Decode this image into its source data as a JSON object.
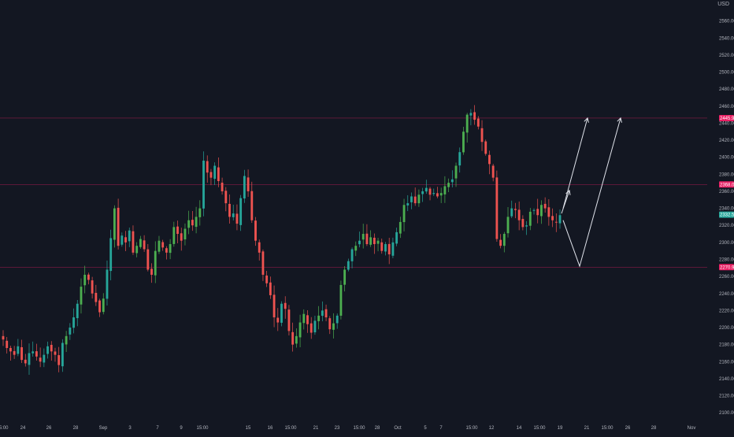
{
  "colors": {
    "background": "#131722",
    "up": "#26a69a",
    "up_bright": "#4caf50",
    "down": "#ef5350",
    "axis_text": "#b2b5be",
    "hline": "#e91e63",
    "last_price_tag": "#26a69a",
    "arrow": "#e0e3eb"
  },
  "header": {
    "currency": "USD"
  },
  "chart_data": {
    "type": "candlestick",
    "y_axis": {
      "ylim": [
        2090,
        2580
      ],
      "ticks": [
        "2560.00",
        "2540.00",
        "2520.00",
        "2500.00",
        "2480.00",
        "2460.00",
        "2440.00",
        "2420.00",
        "2400.00",
        "2380.00",
        "2360.00",
        "2340.00",
        "2320.00",
        "2300.00",
        "2280.00",
        "2260.00",
        "2240.00",
        "2220.00",
        "2200.00",
        "2180.00",
        "2160.00",
        "2140.00",
        "2120.00",
        "2100.00"
      ]
    },
    "x_axis": {
      "ticks": [
        "15:00",
        "24",
        "26",
        "28",
        "Sep",
        "3",
        "7",
        "9",
        "15:00",
        "15",
        "16",
        "15:00",
        "21",
        "23",
        "15:00",
        "28",
        "Oct",
        "5",
        "7",
        "15:00",
        "12",
        "14",
        "15:00",
        "19",
        "21",
        "15:00",
        "26",
        "28",
        "Nov"
      ]
    },
    "horizontal_levels": [
      {
        "value": 2445.96,
        "label": "2445.96"
      },
      {
        "value": 2368.0,
        "label": "2368.00"
      },
      {
        "value": 2270.96,
        "label": "2270.96"
      }
    ],
    "last_price": {
      "value": 2332.52,
      "label": "2332.52"
    },
    "close_path": [
      2186,
      2176,
      2172,
      2168,
      2178,
      2162,
      2158,
      2170,
      2172,
      2166,
      2160,
      2168,
      2178,
      2172,
      2168,
      2156,
      2182,
      2190,
      2200,
      2212,
      2228,
      2248,
      2262,
      2256,
      2240,
      2230,
      2218,
      2234,
      2268,
      2305,
      2340,
      2296,
      2308,
      2300,
      2314,
      2288,
      2296,
      2304,
      2292,
      2268,
      2262,
      2290,
      2302,
      2294,
      2288,
      2298,
      2318,
      2310,
      2302,
      2316,
      2326,
      2320,
      2330,
      2340,
      2396,
      2382,
      2376,
      2390,
      2372,
      2360,
      2346,
      2330,
      2334,
      2322,
      2352,
      2378,
      2360,
      2326,
      2302,
      2288,
      2262,
      2252,
      2238,
      2212,
      2206,
      2228,
      2222,
      2196,
      2180,
      2190,
      2206,
      2216,
      2204,
      2194,
      2208,
      2214,
      2220,
      2212,
      2198,
      2205,
      2214,
      2250,
      2268,
      2278,
      2292,
      2296,
      2302,
      2310,
      2298,
      2306,
      2298,
      2302,
      2290,
      2298,
      2286,
      2300,
      2312,
      2324,
      2344,
      2346,
      2354,
      2346,
      2356,
      2360,
      2364,
      2356,
      2358,
      2354,
      2358,
      2366,
      2370,
      2374,
      2390,
      2406,
      2430,
      2450,
      2452,
      2444,
      2436,
      2418,
      2404,
      2392,
      2376,
      2304,
      2296,
      2310,
      2330,
      2340,
      2338,
      2326,
      2318,
      2320,
      2336,
      2338,
      2332,
      2344,
      2340,
      2330,
      2326,
      2324,
      2332
    ],
    "projection_path_prices": [
      {
        "x": 20,
        "y": 2334
      },
      {
        "x": 21,
        "y": 2343
      },
      {
        "x": 22,
        "y": 2361
      }
    ],
    "annotations": [
      "projection arrows toward 2445.96"
    ]
  }
}
